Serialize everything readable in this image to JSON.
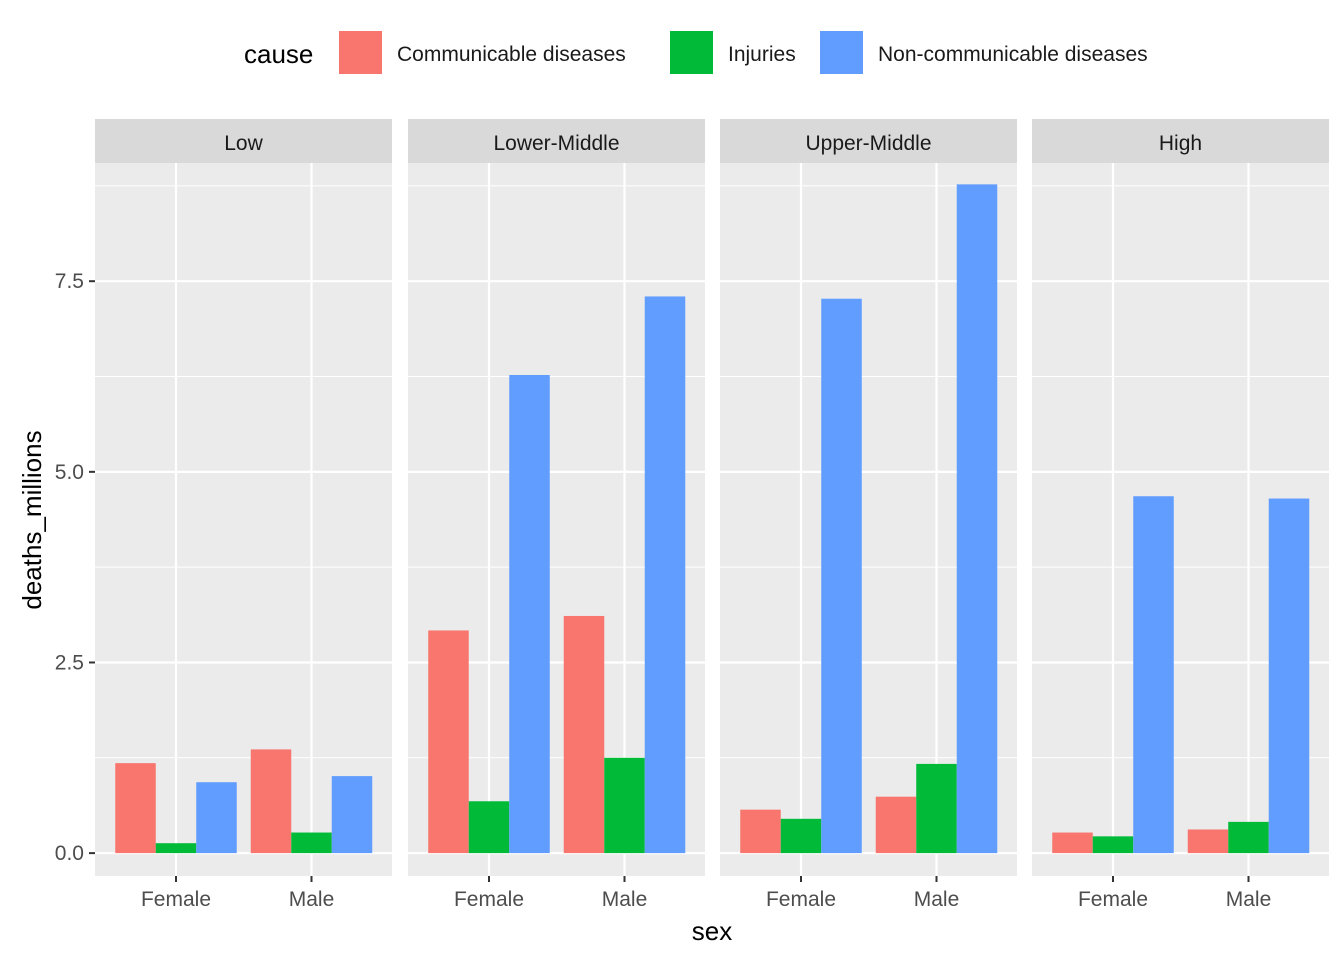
{
  "chart_data": {
    "type": "bar",
    "layout": "faceted",
    "xlabel": "sex",
    "ylabel": "deaths_millions",
    "ylim": [
      -0.3,
      9.05
    ],
    "yticks": [
      0.0,
      2.5,
      5.0,
      7.5
    ],
    "ytick_labels": [
      "0.0",
      "2.5",
      "5.0",
      "7.5"
    ],
    "categories": [
      "Female",
      "Male"
    ],
    "legend": {
      "title": "cause",
      "position": "top"
    },
    "series": [
      {
        "name": "Communicable diseases",
        "color": "#F8766D"
      },
      {
        "name": "Injuries",
        "color": "#00BA38"
      },
      {
        "name": "Non-communicable diseases",
        "color": "#619CFF"
      }
    ],
    "facets": [
      {
        "label": "Low",
        "values": {
          "Communicable diseases": [
            1.18,
            1.36
          ],
          "Injuries": [
            0.13,
            0.27
          ],
          "Non-communicable diseases": [
            0.93,
            1.01
          ]
        }
      },
      {
        "label": "Lower-Middle",
        "values": {
          "Communicable diseases": [
            2.92,
            3.11
          ],
          "Injuries": [
            0.68,
            1.25
          ],
          "Non-communicable diseases": [
            6.27,
            7.3
          ]
        }
      },
      {
        "label": "Upper-Middle",
        "values": {
          "Communicable diseases": [
            0.57,
            0.74
          ],
          "Injuries": [
            0.45,
            1.17
          ],
          "Non-communicable diseases": [
            7.27,
            8.77
          ]
        }
      },
      {
        "label": "High",
        "values": {
          "Communicable diseases": [
            0.27,
            0.31
          ],
          "Injuries": [
            0.22,
            0.41
          ],
          "Non-communicable diseases": [
            4.68,
            4.65
          ]
        }
      }
    ]
  }
}
